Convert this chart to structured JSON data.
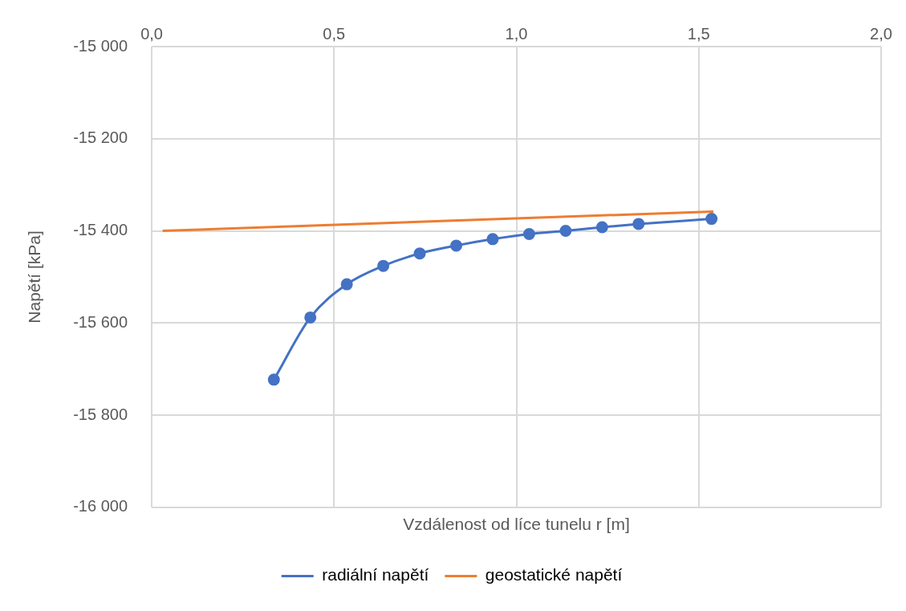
{
  "chart_data": {
    "type": "line",
    "xlabel": "Vzdálenost od líce tunelu r [m]",
    "ylabel": "Napětí [kPa]",
    "xlim": [
      0,
      2
    ],
    "xticks": [
      {
        "value": 0,
        "label": "0,0"
      },
      {
        "value": 0.5,
        "label": "0,5"
      },
      {
        "value": 1,
        "label": "1,0"
      },
      {
        "value": 1.5,
        "label": "1,5"
      },
      {
        "value": 2,
        "label": "2,0"
      }
    ],
    "ylim": [
      -16000,
      -15000
    ],
    "yticks": [
      {
        "value": -16000,
        "label": "-16 000"
      },
      {
        "value": -15800,
        "label": "-15 800"
      },
      {
        "value": -15600,
        "label": "-15 600"
      },
      {
        "value": -15400,
        "label": "-15 400"
      },
      {
        "value": -15200,
        "label": "-15 200"
      },
      {
        "value": -15000,
        "label": "-15 000"
      }
    ],
    "grid": true,
    "legend": "bottom",
    "series": [
      {
        "name": "radiální napětí",
        "color": "#4472c4",
        "marker": "circle",
        "x": [
          0.335,
          0.435,
          0.535,
          0.635,
          0.735,
          0.835,
          0.935,
          1.035,
          1.135,
          1.235,
          1.335,
          1.535
        ],
        "values": [
          -15723,
          -15588,
          -15516,
          -15476,
          -15449,
          -15432,
          -15418,
          -15407,
          -15400,
          -15392,
          -15385,
          -15374
        ]
      },
      {
        "name": "geostatické napětí",
        "color": "#ed7d31",
        "marker": "none",
        "x": [
          0.03,
          1.54
        ],
        "values": [
          -15400,
          -15358
        ]
      }
    ]
  }
}
